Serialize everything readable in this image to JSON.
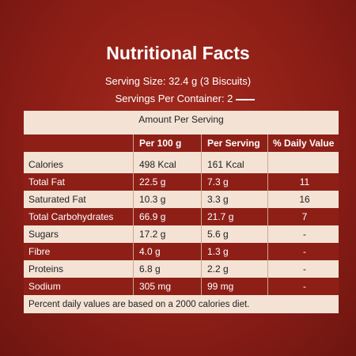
{
  "header": {
    "title": "Nutritional Facts",
    "serving_size": "Serving Size: 32.4 g (3 Biscuits)",
    "servings_per_container": "Servings Per Container: 2"
  },
  "table": {
    "caption": "Amount Per Serving",
    "columns": [
      "Per 100 g",
      "Per Serving",
      "% Daily Value"
    ],
    "rows": [
      [
        "Calories",
        "498 Kcal",
        "161 Kcal",
        ""
      ],
      [
        "Total Fat",
        "22.5 g",
        "7.3 g",
        "11"
      ],
      [
        "Saturated Fat",
        "10.3 g",
        "3.3 g",
        "16"
      ],
      [
        "Total Carbohydrates",
        "66.9 g",
        "21.7 g",
        "7"
      ],
      [
        "Sugars",
        "17.2 g",
        "5.6 g",
        "-"
      ],
      [
        "Fibre",
        "4.0 g",
        "1.3 g",
        "-"
      ],
      [
        "Proteins",
        "6.8 g",
        "2.2 g",
        "-"
      ],
      [
        "Sodium",
        "305 mg",
        "99 mg",
        "-"
      ]
    ],
    "footnote": "Percent daily values are based on a 2000 calories diet."
  }
}
